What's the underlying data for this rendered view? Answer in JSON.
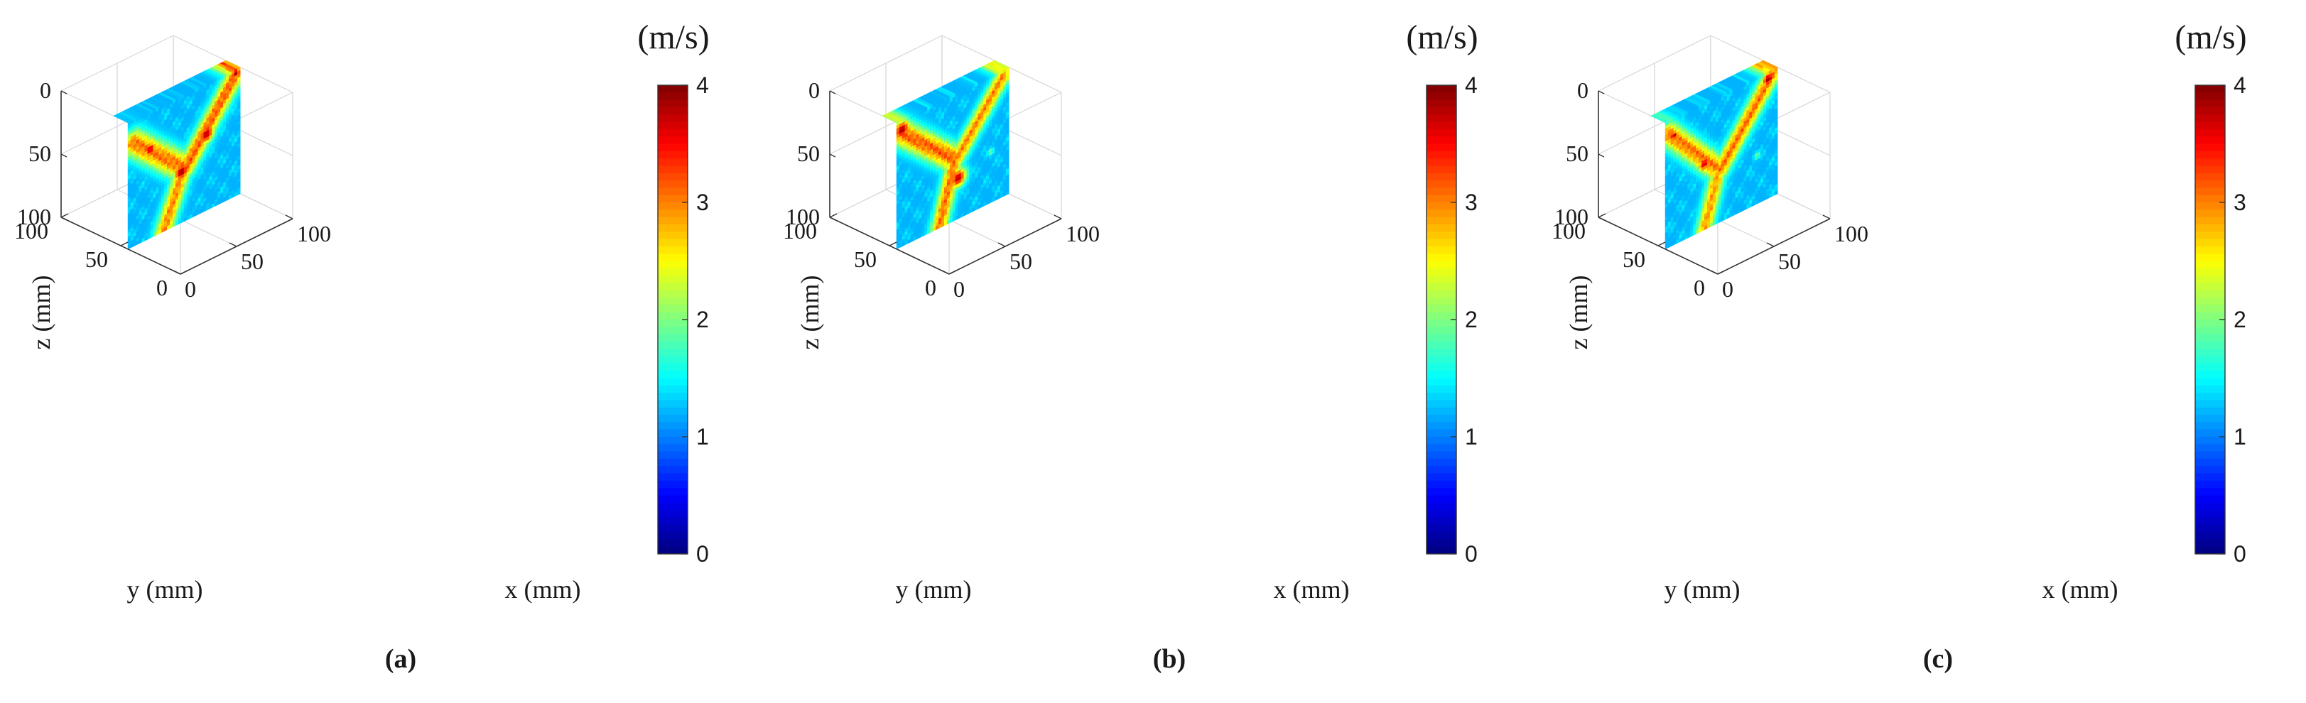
{
  "chart_data": [
    {
      "type": "heatmap",
      "panel_label": "(a)",
      "colorbar": {
        "title": "(m/s)",
        "range": [
          0,
          4
        ],
        "ticks": [
          "0",
          "1",
          "2",
          "3",
          "4"
        ]
      },
      "axes": {
        "x": {
          "label": "x (mm)",
          "range": [
            0,
            100
          ],
          "ticks": [
            "0",
            "50",
            "100"
          ]
        },
        "y": {
          "label": "y (mm)",
          "range": [
            0,
            100
          ],
          "ticks": [
            "0",
            "50",
            "100"
          ]
        },
        "z": {
          "label": "z (mm)",
          "range": [
            0,
            100
          ],
          "ticks": [
            "0",
            "50",
            "100"
          ],
          "direction": "reversed"
        }
      },
      "slice": {
        "plane": "y = 50 mm",
        "x_extent": [
          0,
          100
        ],
        "z_extent": [
          0,
          100
        ]
      },
      "background_velocity": 1.2,
      "features": [
        {
          "name": "left-branch",
          "from": [
            5,
            18
          ],
          "to": [
            48,
            56
          ],
          "width": 15,
          "peak_velocity": 3.3
        },
        {
          "name": "right-branch",
          "from": [
            97,
            3
          ],
          "to": [
            52,
            58
          ],
          "width": 14,
          "peak_velocity": 3.4
        },
        {
          "name": "stem",
          "from": [
            50,
            58
          ],
          "to": [
            32,
            100
          ],
          "width": 13,
          "peak_velocity": 3.2
        },
        {
          "name": "hotspot-1",
          "center": [
            48,
            60
          ],
          "radius": 5,
          "peak_velocity": 3.9
        },
        {
          "name": "hotspot-2",
          "center": [
            70,
            40
          ],
          "radius": 5,
          "peak_velocity": 3.8
        },
        {
          "name": "hotspot-3",
          "center": [
            96,
            3
          ],
          "radius": 3,
          "peak_velocity": 3.9
        },
        {
          "name": "hotspot-4",
          "center": [
            20,
            30
          ],
          "radius": 4,
          "peak_velocity": 3.7
        }
      ]
    },
    {
      "type": "heatmap",
      "panel_label": "(b)",
      "colorbar": {
        "title": "(m/s)",
        "range": [
          0,
          4
        ],
        "ticks": [
          "0",
          "1",
          "2",
          "3",
          "4"
        ]
      },
      "axes": {
        "x": {
          "label": "x (mm)",
          "range": [
            0,
            100
          ],
          "ticks": [
            "0",
            "50",
            "100"
          ]
        },
        "y": {
          "label": "y (mm)",
          "range": [
            0,
            100
          ],
          "ticks": [
            "0",
            "50",
            "100"
          ]
        },
        "z": {
          "label": "z (mm)",
          "range": [
            0,
            100
          ],
          "ticks": [
            "0",
            "50",
            "100"
          ],
          "direction": "reversed"
        }
      },
      "slice": {
        "plane": "y = 50 mm",
        "x_extent": [
          0,
          100
        ],
        "z_extent": [
          0,
          100
        ]
      },
      "background_velocity": 1.2,
      "features": [
        {
          "name": "left-branch",
          "from": [
            2,
            8
          ],
          "to": [
            50,
            50
          ],
          "width": 14,
          "peak_velocity": 3.4
        },
        {
          "name": "right-branch",
          "from": [
            95,
            5
          ],
          "to": [
            54,
            52
          ],
          "width": 12,
          "peak_velocity": 3.2
        },
        {
          "name": "stem",
          "from": [
            52,
            52
          ],
          "to": [
            38,
            100
          ],
          "width": 12,
          "peak_velocity": 3.3
        },
        {
          "name": "hotspot-1",
          "center": [
            5,
            8
          ],
          "radius": 5,
          "peak_velocity": 3.9
        },
        {
          "name": "hotspot-2",
          "center": [
            55,
            68
          ],
          "radius": 5,
          "peak_velocity": 3.8
        },
        {
          "name": "speck-1",
          "center": [
            70,
            22
          ],
          "radius": 2,
          "peak_velocity": 2.0
        },
        {
          "name": "speck-2",
          "center": [
            84,
            60
          ],
          "radius": 2,
          "peak_velocity": 2.0
        }
      ]
    },
    {
      "type": "heatmap",
      "panel_label": "(c)",
      "colorbar": {
        "title": "(m/s)",
        "range": [
          0,
          4
        ],
        "ticks": [
          "0",
          "1",
          "2",
          "3",
          "4"
        ]
      },
      "axes": {
        "x": {
          "label": "x (mm)",
          "range": [
            0,
            100
          ],
          "ticks": [
            "0",
            "50",
            "100"
          ]
        },
        "y": {
          "label": "y (mm)",
          "range": [
            0,
            100
          ],
          "ticks": [
            "0",
            "50",
            "100"
          ]
        },
        "z": {
          "label": "z (mm)",
          "range": [
            0,
            100
          ],
          "ticks": [
            "0",
            "50",
            "100"
          ],
          "direction": "reversed"
        }
      },
      "slice": {
        "plane": "y = 50 mm",
        "x_extent": [
          0,
          100
        ],
        "z_extent": [
          0,
          100
        ]
      },
      "background_velocity": 1.2,
      "features": [
        {
          "name": "left-branch",
          "from": [
            3,
            10
          ],
          "to": [
            45,
            55
          ],
          "width": 13,
          "peak_velocity": 3.3
        },
        {
          "name": "right-branch",
          "from": [
            96,
            3
          ],
          "to": [
            50,
            58
          ],
          "width": 13,
          "peak_velocity": 3.3
        },
        {
          "name": "stem",
          "from": [
            48,
            58
          ],
          "to": [
            35,
            100
          ],
          "width": 12,
          "peak_velocity": 3.1
        },
        {
          "name": "hotspot-1",
          "center": [
            92,
            6
          ],
          "radius": 4,
          "peak_velocity": 3.9
        },
        {
          "name": "hotspot-2",
          "center": [
            35,
            48
          ],
          "radius": 4,
          "peak_velocity": 3.7
        },
        {
          "name": "hotspot-3",
          "center": [
            8,
            14
          ],
          "radius": 3,
          "peak_velocity": 3.8
        },
        {
          "name": "speck-1",
          "center": [
            82,
            62
          ],
          "radius": 2,
          "peak_velocity": 2.0
        }
      ]
    }
  ]
}
